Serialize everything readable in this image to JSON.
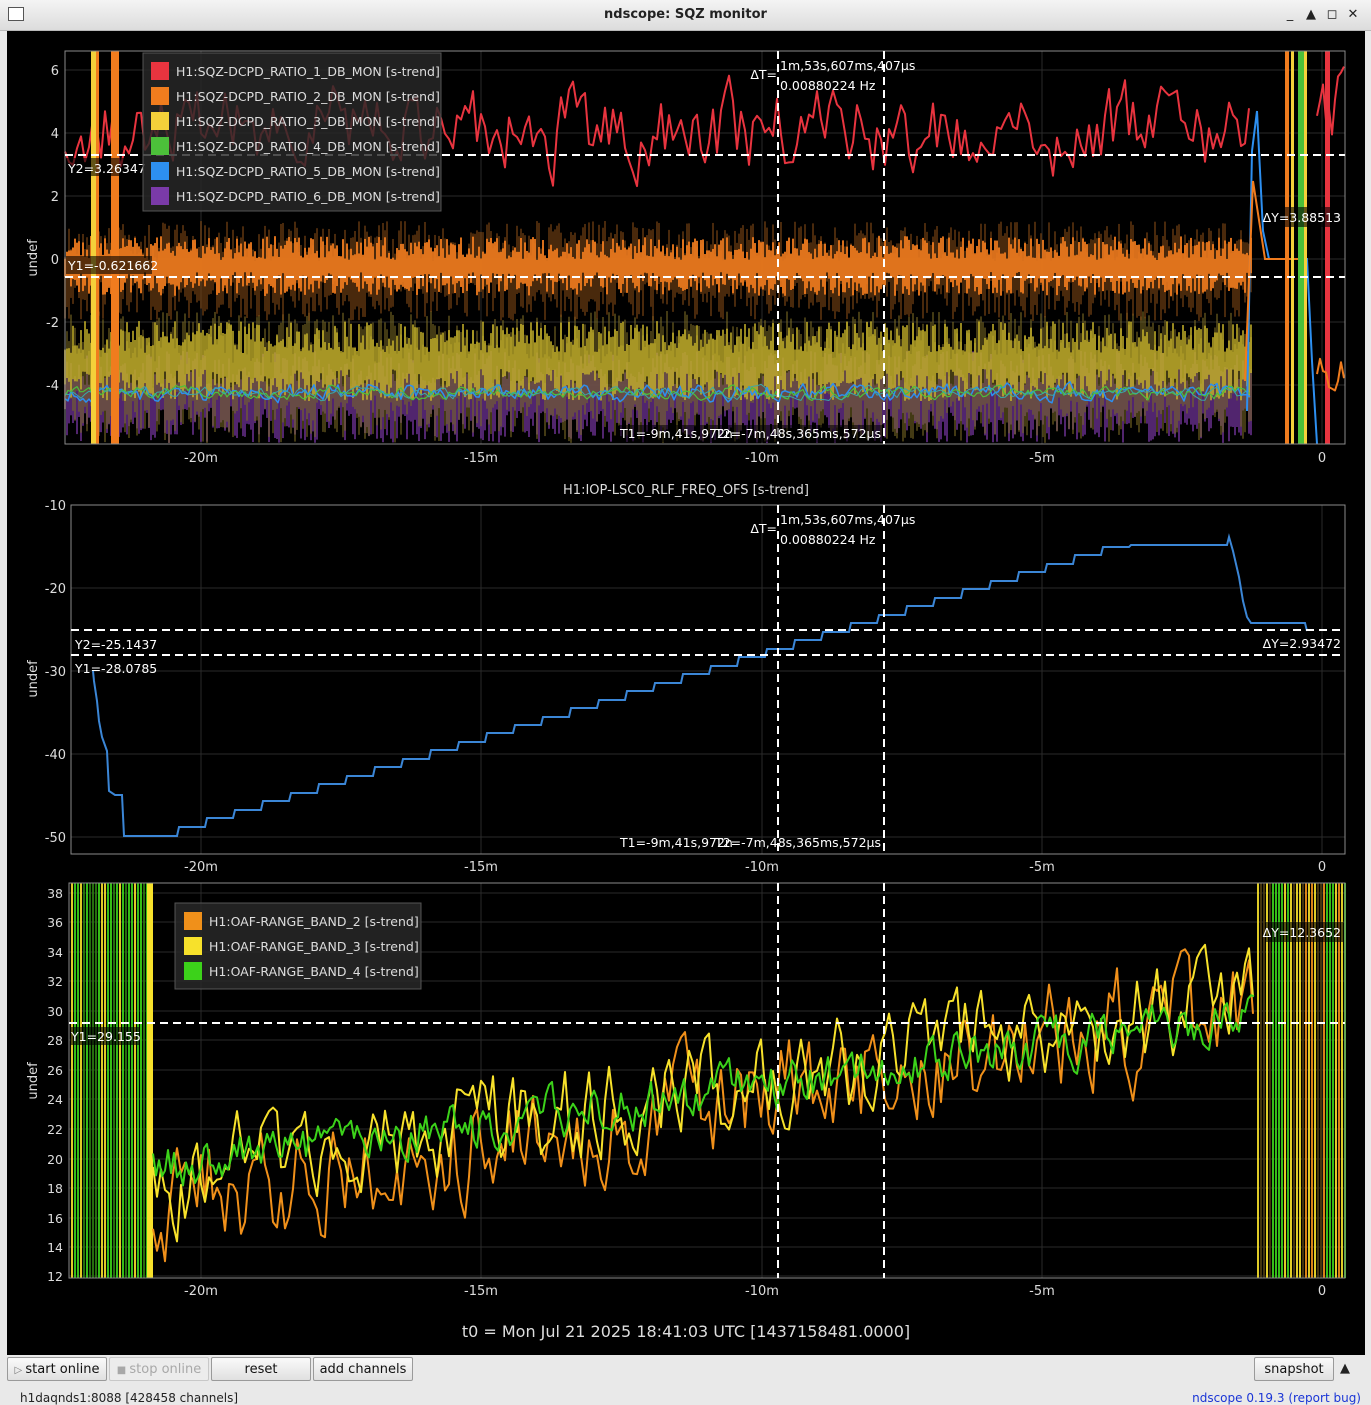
{
  "window": {
    "title": "ndscope: SQZ monitor",
    "minimize": "_",
    "maximize": "▲",
    "restore": "◻",
    "close": "✕"
  },
  "plots": [
    {
      "id": "p1",
      "title": "",
      "ylabel": "undef",
      "yticks": [
        "6",
        "4",
        "2",
        "0",
        "-2",
        "-4"
      ],
      "xticks": [
        "-20m",
        "-15m",
        "-10m",
        "-5m",
        "0"
      ],
      "legend": [
        {
          "label": "H1:SQZ-DCPD_RATIO_1_DB_MON [s-trend]",
          "color": "#e8343f"
        },
        {
          "label": "H1:SQZ-DCPD_RATIO_2_DB_MON [s-trend]",
          "color": "#f07c1e"
        },
        {
          "label": "H1:SQZ-DCPD_RATIO_3_DB_MON [s-trend]",
          "color": "#f4d03a"
        },
        {
          "label": "H1:SQZ-DCPD_RATIO_4_DB_MON [s-trend]",
          "color": "#4cc03a"
        },
        {
          "label": "H1:SQZ-DCPD_RATIO_5_DB_MON [s-trend]",
          "color": "#2d8ff0"
        },
        {
          "label": "H1:SQZ-DCPD_RATIO_6_DB_MON [s-trend]",
          "color": "#7a3aa8"
        }
      ],
      "cursors": {
        "dt": "ΔT=",
        "dt_value": "1m,53s,607ms,407μs",
        "freq": "0.00880224 Hz",
        "y2": "Y2=3.26347",
        "y1": "Y1=-0.621662",
        "dy": "ΔY=3.88513",
        "t1": "T1=-9m,41s,972n",
        "t2": "T2=-7m,48s,365ms,572μs"
      }
    },
    {
      "id": "p2",
      "title": "H1:IOP-LSC0_RLF_FREQ_OFS [s-trend]",
      "ylabel": "undef",
      "yticks": [
        "-10",
        "-20",
        "-30",
        "-40",
        "-50"
      ],
      "xticks": [
        "-20m",
        "-15m",
        "-10m",
        "-5m",
        "0"
      ],
      "cursors": {
        "dt": "ΔT=",
        "dt_value": "1m,53s,607ms,407μs",
        "freq": "0.00880224 Hz",
        "y2": "Y2=-25.1437",
        "y1": "Y1=-28.0785",
        "dy": "ΔY=2.93472",
        "t1": "T1=-9m,41s,972n",
        "t2": "T2=-7m,48s,365ms,572μs"
      }
    },
    {
      "id": "p3",
      "title": "",
      "ylabel": "undef",
      "yticks": [
        "38",
        "36",
        "34",
        "32",
        "30",
        "28",
        "26",
        "24",
        "22",
        "20",
        "18",
        "16",
        "14",
        "12"
      ],
      "xticks": [
        "-20m",
        "-15m",
        "-10m",
        "-5m",
        "0"
      ],
      "legend": [
        {
          "label": "H1:OAF-RANGE_BAND_2 [s-trend]",
          "color": "#f0901a"
        },
        {
          "label": "H1:OAF-RANGE_BAND_3 [s-trend]",
          "color": "#f7e12b"
        },
        {
          "label": "H1:OAF-RANGE_BAND_4 [s-trend]",
          "color": "#3cd21a"
        }
      ],
      "cursors": {
        "y1": "Y1=29.155",
        "dy": "ΔY=12.3652"
      }
    }
  ],
  "t0_label": "t0 = Mon Jul 21 2025 18:41:03 UTC [1437158481.0000]",
  "toolbar": {
    "start_online": "start online",
    "stop_online": "stop online",
    "reset": "reset",
    "add_channels": "add channels",
    "snapshot": "snapshot",
    "collapse": "▲"
  },
  "status": {
    "server": "h1daqnds1:8088  [428458 channels]",
    "version": "ndscope 0.19.3 (report bug)"
  }
}
